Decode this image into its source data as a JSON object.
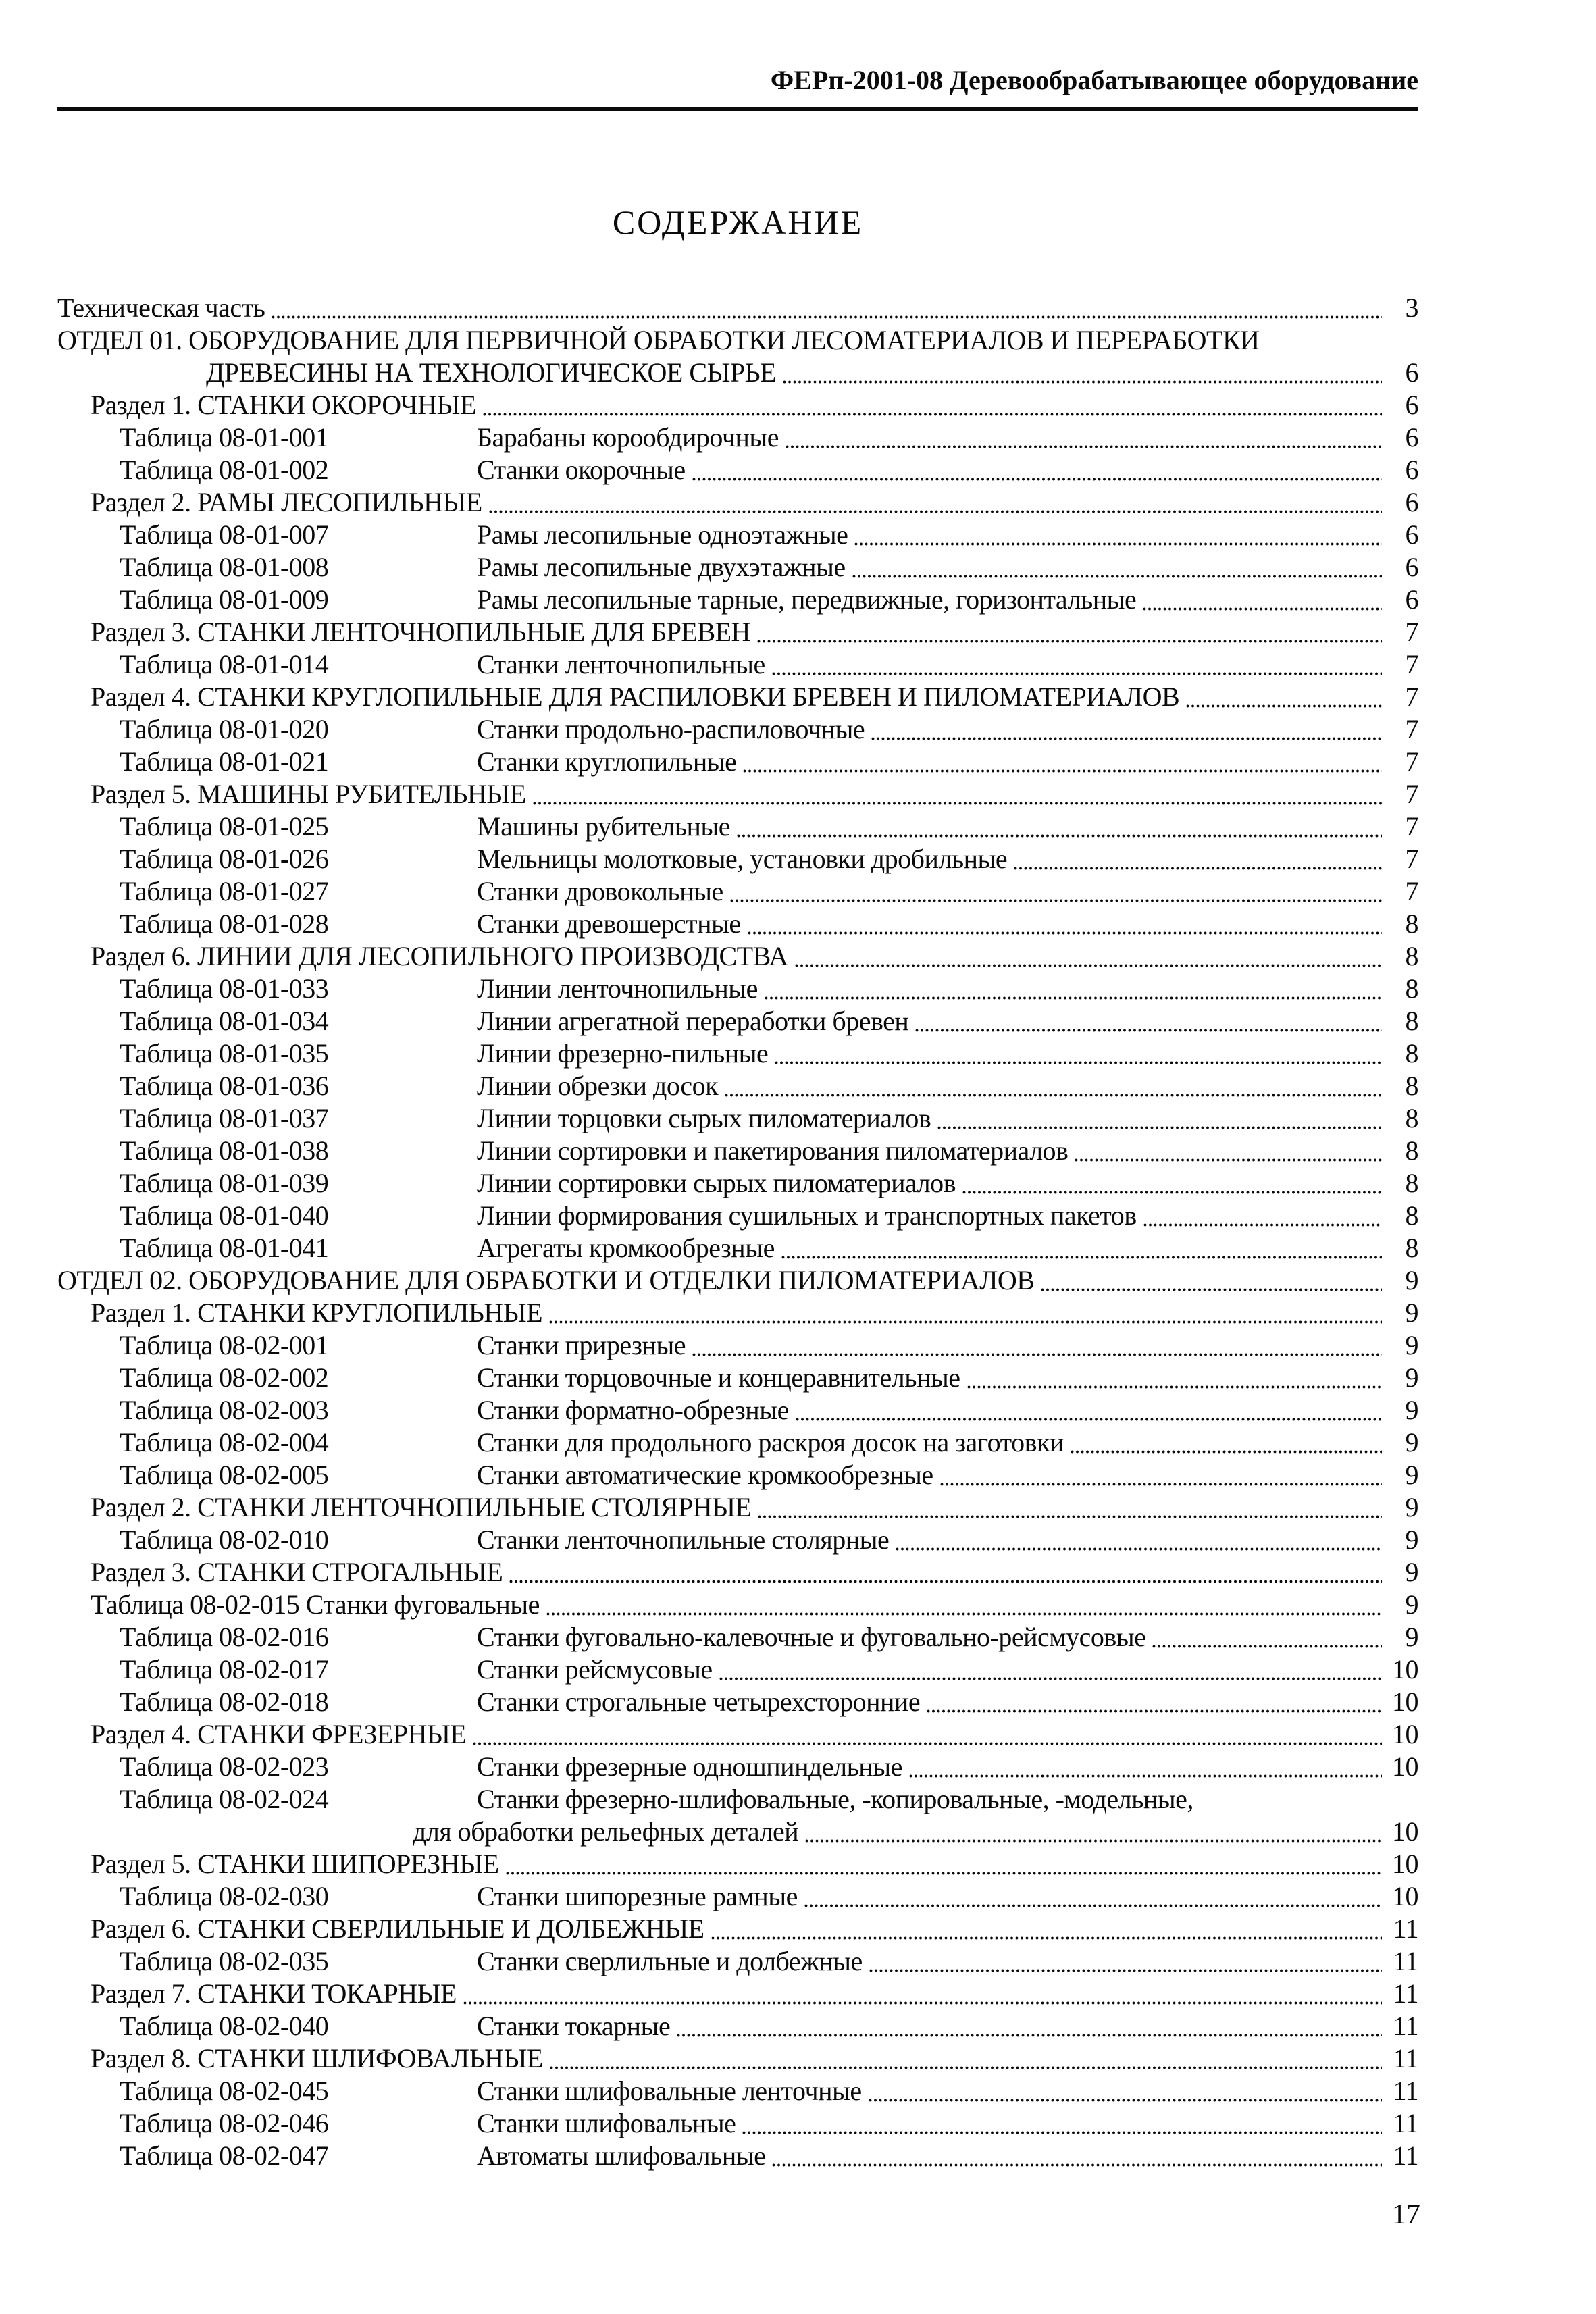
{
  "header": {
    "title": "ФЕРп-2001-08 Деревообрабатывающее оборудование"
  },
  "title": "СОДЕРЖАНИЕ",
  "footer": {
    "page_number": "17"
  },
  "toc": {
    "entries": [
      {
        "type": "section",
        "text": "Техническая часть",
        "page": "3"
      },
      {
        "type": "section",
        "text": "ОТДЕЛ 01. ОБОРУДОВАНИЕ ДЛЯ ПЕРВИЧНОЙ ОБРАБОТКИ ЛЕСОМАТЕРИАЛОВ И ПЕРЕРАБОТКИ",
        "text2": "ДРЕВЕСИНЫ НА ТЕХНОЛОГИЧЕСКОЕ СЫРЬЕ",
        "page": "6"
      },
      {
        "type": "subsection",
        "text": "Раздел 1. СТАНКИ ОКОРОЧНЫЕ",
        "page": "6"
      },
      {
        "type": "table",
        "num": "Таблица 08-01-001",
        "title": "Барабаны корообдирочные",
        "page": "6"
      },
      {
        "type": "table",
        "num": "Таблица 08-01-002",
        "title": "Станки окорочные",
        "page": "6"
      },
      {
        "type": "subsection",
        "text": "Раздел 2. РАМЫ ЛЕСОПИЛЬНЫЕ",
        "page": "6"
      },
      {
        "type": "table",
        "num": "Таблица 08-01-007",
        "title": "Рамы лесопильные одноэтажные",
        "page": "6"
      },
      {
        "type": "table",
        "num": "Таблица 08-01-008",
        "title": "Рамы лесопильные двухэтажные",
        "page": "6"
      },
      {
        "type": "table",
        "num": "Таблица 08-01-009",
        "title": "Рамы лесопильные тарные, передвижные, горизонтальные",
        "page": "6"
      },
      {
        "type": "subsection",
        "text": "Раздел 3. СТАНКИ ЛЕНТОЧНОПИЛЬНЫЕ ДЛЯ БРЕВЕН",
        "page": "7"
      },
      {
        "type": "table",
        "num": "Таблица 08-01-014",
        "title": "Станки ленточнопильные",
        "page": "7"
      },
      {
        "type": "subsection",
        "text": "Раздел 4. СТАНКИ КРУГЛОПИЛЬНЫЕ ДЛЯ РАСПИЛОВКИ БРЕВЕН И ПИЛОМАТЕРИАЛОВ",
        "page": "7"
      },
      {
        "type": "table",
        "num": "Таблица 08-01-020",
        "title": "Станки продольно-распиловочные",
        "page": "7"
      },
      {
        "type": "table",
        "num": "Таблица 08-01-021",
        "title": "Станки круглопильные",
        "page": "7"
      },
      {
        "type": "subsection",
        "text": "Раздел 5. МАШИНЫ РУБИТЕЛЬНЫЕ",
        "page": "7"
      },
      {
        "type": "table",
        "num": "Таблица 08-01-025",
        "title": "Машины рубительные",
        "page": "7"
      },
      {
        "type": "table",
        "num": "Таблица 08-01-026",
        "title": "Мельницы молотковые, установки дробильные",
        "page": "7"
      },
      {
        "type": "table",
        "num": "Таблица 08-01-027",
        "title": "Станки дровокольные",
        "page": "7"
      },
      {
        "type": "table",
        "num": "Таблица 08-01-028",
        "title": "Станки древошерстные",
        "page": "8"
      },
      {
        "type": "subsection",
        "text": "Раздел 6. ЛИНИИ ДЛЯ ЛЕСОПИЛЬНОГО ПРОИЗВОДСТВА",
        "page": "8"
      },
      {
        "type": "table",
        "num": "Таблица 08-01-033",
        "title": "Линии ленточнопильные",
        "page": "8"
      },
      {
        "type": "table",
        "num": "Таблица 08-01-034",
        "title": "Линии агрегатной переработки бревен",
        "page": "8"
      },
      {
        "type": "table",
        "num": "Таблица 08-01-035",
        "title": "Линии фрезерно-пильные",
        "page": "8"
      },
      {
        "type": "table",
        "num": "Таблица 08-01-036",
        "title": "Линии обрезки досок",
        "page": "8"
      },
      {
        "type": "table",
        "num": "Таблица 08-01-037",
        "title": "Линии торцовки сырых пиломатериалов",
        "page": "8"
      },
      {
        "type": "table",
        "num": "Таблица 08-01-038",
        "title": "Линии сортировки и пакетирования пиломатериалов",
        "page": "8"
      },
      {
        "type": "table",
        "num": "Таблица 08-01-039",
        "title": "Линии сортировки сырых пиломатериалов",
        "page": "8"
      },
      {
        "type": "table",
        "num": "Таблица 08-01-040",
        "title": "Линии формирования сушильных и транспортных пакетов",
        "page": "8"
      },
      {
        "type": "table",
        "num": "Таблица 08-01-041",
        "title": "Агрегаты кромкообрезные",
        "page": "8"
      },
      {
        "type": "section",
        "text": "ОТДЕЛ 02. ОБОРУДОВАНИЕ ДЛЯ ОБРАБОТКИ И ОТДЕЛКИ ПИЛОМАТЕРИАЛОВ",
        "page": "9"
      },
      {
        "type": "subsection",
        "text": "Раздел 1. СТАНКИ КРУГЛОПИЛЬНЫЕ",
        "page": "9"
      },
      {
        "type": "table",
        "num": "Таблица 08-02-001",
        "title": "Станки прирезные",
        "page": "9"
      },
      {
        "type": "table",
        "num": "Таблица 08-02-002",
        "title": "Станки торцовочные и концеравнительные",
        "page": "9"
      },
      {
        "type": "table",
        "num": "Таблица 08-02-003",
        "title": "Станки форматно-обрезные",
        "page": "9"
      },
      {
        "type": "table",
        "num": "Таблица 08-02-004",
        "title": "Станки для продольного раскроя досок на заготовки",
        "page": "9"
      },
      {
        "type": "table",
        "num": "Таблица 08-02-005",
        "title": "Станки автоматические кромкообрезные",
        "page": "9"
      },
      {
        "type": "subsection",
        "text": "Раздел 2. СТАНКИ ЛЕНТОЧНОПИЛЬНЫЕ СТОЛЯРНЫЕ",
        "page": "9"
      },
      {
        "type": "table",
        "num": "Таблица 08-02-010",
        "title": "Станки ленточнопильные столярные",
        "page": "9"
      },
      {
        "type": "subsection",
        "text": "Раздел 3. СТАНКИ СТРОГАЛЬНЫЕ",
        "page": "9"
      },
      {
        "type": "table_inline",
        "text": "Таблица 08-02-015 Станки фуговальные",
        "page": "9"
      },
      {
        "type": "table",
        "num": "Таблица 08-02-016",
        "title": "Станки фуговально-калевочные и фуговально-рейсмусовые",
        "page": "9"
      },
      {
        "type": "table",
        "num": "Таблица 08-02-017",
        "title": "Станки рейсмусовые",
        "page": "10"
      },
      {
        "type": "table",
        "num": "Таблица 08-02-018",
        "title": "Станки строгальные четырехсторонние",
        "page": "10"
      },
      {
        "type": "subsection",
        "text": "Раздел 4. СТАНКИ ФРЕЗЕРНЫЕ",
        "page": "10"
      },
      {
        "type": "table",
        "num": "Таблица 08-02-023",
        "title": "Станки фрезерные одношпиндельные",
        "page": "10"
      },
      {
        "type": "table",
        "num": "Таблица 08-02-024",
        "title": "Станки фрезерно-шлифовальные, -копировальные, -модельные,",
        "title2": "для обработки рельефных деталей",
        "page": "10"
      },
      {
        "type": "subsection",
        "text": "Раздел 5. СТАНКИ ШИПОРЕЗНЫЕ",
        "page": "10"
      },
      {
        "type": "table",
        "num": "Таблица 08-02-030",
        "title": "Станки шипорезные рамные",
        "page": "10"
      },
      {
        "type": "subsection",
        "text": "Раздел 6. СТАНКИ СВЕРЛИЛЬНЫЕ И ДОЛБЕЖНЫЕ",
        "page": "11"
      },
      {
        "type": "table",
        "num": "Таблица 08-02-035",
        "title": "Станки сверлильные и долбежные",
        "page": "11"
      },
      {
        "type": "subsection",
        "text": "Раздел 7. СТАНКИ ТОКАРНЫЕ",
        "page": "11"
      },
      {
        "type": "table",
        "num": "Таблица 08-02-040",
        "title": "Станки токарные",
        "page": "11"
      },
      {
        "type": "subsection",
        "text": "Раздел 8. СТАНКИ ШЛИФОВАЛЬНЫЕ",
        "page": "11"
      },
      {
        "type": "table",
        "num": "Таблица 08-02-045",
        "title": "Станки шлифовальные ленточные",
        "page": "11"
      },
      {
        "type": "table",
        "num": "Таблица 08-02-046",
        "title": "Станки шлифовальные",
        "page": "11"
      },
      {
        "type": "table",
        "num": "Таблица 08-02-047",
        "title": "Автоматы шлифовальные",
        "page": "11"
      }
    ]
  }
}
